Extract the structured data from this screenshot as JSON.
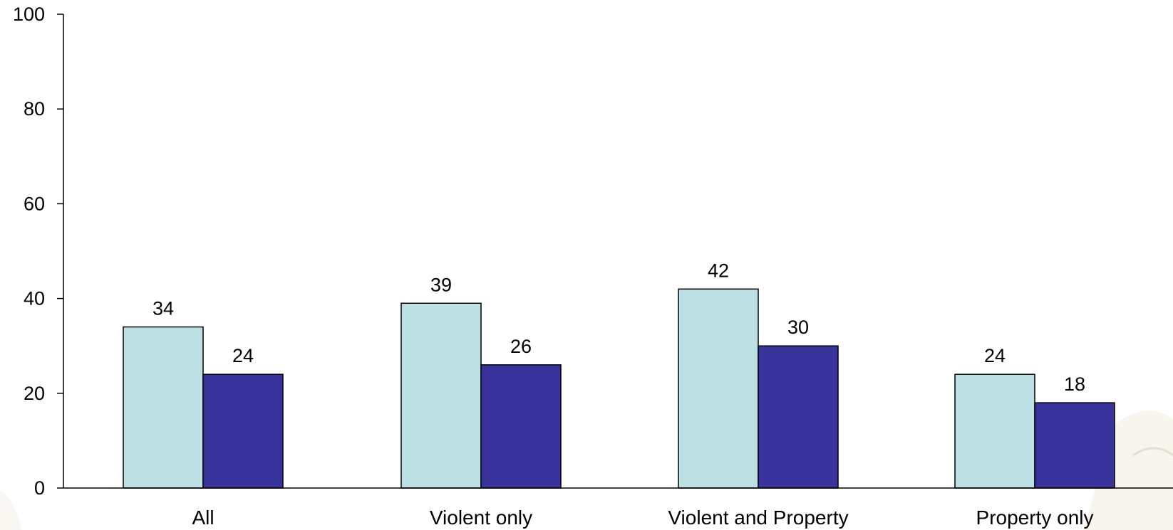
{
  "chart_data": {
    "type": "bar",
    "title": "",
    "xlabel": "",
    "ylabel": "",
    "categories": [
      "All",
      "Violent only",
      "Violent and Property",
      "Property only"
    ],
    "series": [
      {
        "color": "#bce0e4",
        "values": [
          34,
          39,
          42,
          24
        ]
      },
      {
        "color": "#37339b",
        "values": [
          24,
          26,
          30,
          18
        ]
      }
    ],
    "ylim": [
      0,
      100
    ],
    "yticks": [
      0,
      20,
      40,
      60,
      80,
      100
    ],
    "grid": false,
    "legend": "none"
  }
}
